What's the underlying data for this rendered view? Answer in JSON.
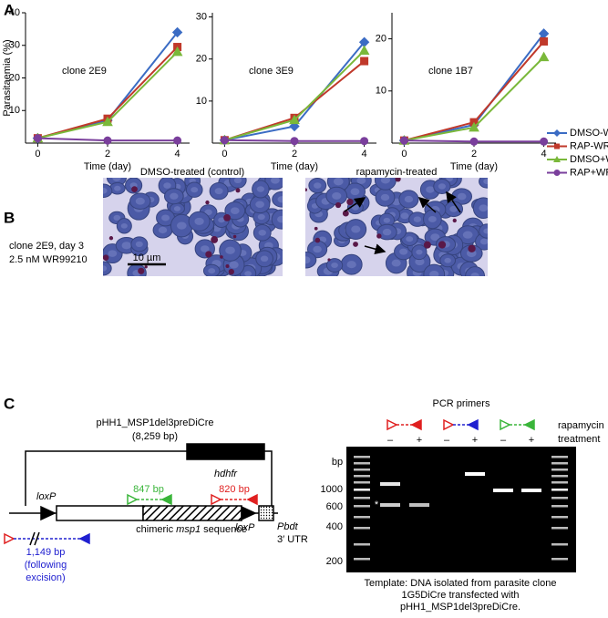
{
  "panel_a": {
    "label": "A"
  },
  "chart_data": [
    {
      "type": "line",
      "annotation": "clone 2E9",
      "y_label": "Parasitaemia (%)",
      "x_label": "Time (day)",
      "x": [
        0,
        2,
        4
      ],
      "xlim": [
        -0.35,
        4.35
      ],
      "xticks": [
        0,
        2,
        4
      ],
      "ylim": [
        0,
        40
      ],
      "yticks": [
        10,
        20,
        30,
        40
      ],
      "series": [
        {
          "color": "#3b6cc4",
          "values": [
            1.5,
            7,
            34
          ]
        },
        {
          "color": "#c0392b",
          "values": [
            1.5,
            7.5,
            29.5
          ]
        },
        {
          "color": "#7ab83a",
          "values": [
            1.5,
            6.5,
            28
          ]
        },
        {
          "color": "#7a3f9c",
          "values": [
            1.5,
            0.8,
            0.8
          ]
        }
      ]
    },
    {
      "type": "line",
      "annotation": "clone 3E9",
      "x_label": "Time (day)",
      "x": [
        0,
        2,
        4
      ],
      "xlim": [
        -0.35,
        4.35
      ],
      "xticks": [
        0,
        2,
        4
      ],
      "ylim": [
        0,
        31
      ],
      "yticks": [
        10,
        20,
        30
      ],
      "series": [
        {
          "color": "#3b6cc4",
          "values": [
            0.7,
            4,
            24
          ]
        },
        {
          "color": "#c0392b",
          "values": [
            0.7,
            6,
            19.5
          ]
        },
        {
          "color": "#7ab83a",
          "values": [
            0.7,
            5.5,
            22
          ]
        },
        {
          "color": "#7a3f9c",
          "values": [
            0.7,
            0.5,
            0.5
          ]
        }
      ]
    },
    {
      "type": "line",
      "annotation": "clone 1B7",
      "x_label": "Time (day)",
      "legend": "right",
      "x": [
        0,
        2,
        4
      ],
      "xlim": [
        -0.35,
        4.35
      ],
      "xticks": [
        0,
        2,
        4
      ],
      "ylim": [
        0,
        25
      ],
      "yticks": [
        10,
        20
      ],
      "series": [
        {
          "name": "DMSO-WR",
          "color": "#3b6cc4",
          "values": [
            0.5,
            3.5,
            21
          ]
        },
        {
          "name": "RAP-WR",
          "color": "#c0392b",
          "values": [
            0.5,
            4,
            19.5
          ]
        },
        {
          "name": "DMSO+WR",
          "color": "#7ab83a",
          "values": [
            0.5,
            3,
            16.5
          ]
        },
        {
          "name": "RAP+WR",
          "color": "#7a3f9c",
          "values": [
            0.5,
            0.3,
            0.3
          ]
        }
      ]
    }
  ],
  "panel_b": {
    "label": "B",
    "condition_lines": [
      "clone 2E9, day 3",
      "2.5 nM WR99210"
    ],
    "images": [
      {
        "title": "DMSO-treated (control)"
      },
      {
        "title": "rapamycin-treated"
      }
    ],
    "scale_bar": "10 µm"
  },
  "panel_c": {
    "label": "C",
    "plasmid": {
      "name": "pHH1_MSP1del3preDiCre",
      "size": "(8,259 bp)",
      "marker_gene": "hdhfr",
      "loxp_labels": [
        "loxP",
        "loxP"
      ],
      "sequence": [
        "chimeric ",
        "msp1",
        " sequence"
      ],
      "utr": [
        "Pbdt",
        "3′ UTR"
      ],
      "products": [
        {
          "size": "847 bp"
        },
        {
          "size": "820 bp"
        },
        {
          "size": "1,149 bp",
          "note": [
            "(following",
            "excision)"
          ]
        }
      ]
    },
    "gel": {
      "title": "PCR primers",
      "treatment": [
        "rapamycin",
        "treatment"
      ],
      "lanes": [
        "–",
        "+",
        "–",
        "+",
        "–",
        "+"
      ],
      "unit": "bp",
      "markers": [
        "1000",
        "600",
        "400",
        "200"
      ],
      "asterisk": "*",
      "caption": [
        "Template: DNA isolated from parasite clone",
        "1G5DiCre transfected with",
        "pHH1_MSP1del3preDiCre."
      ]
    }
  }
}
